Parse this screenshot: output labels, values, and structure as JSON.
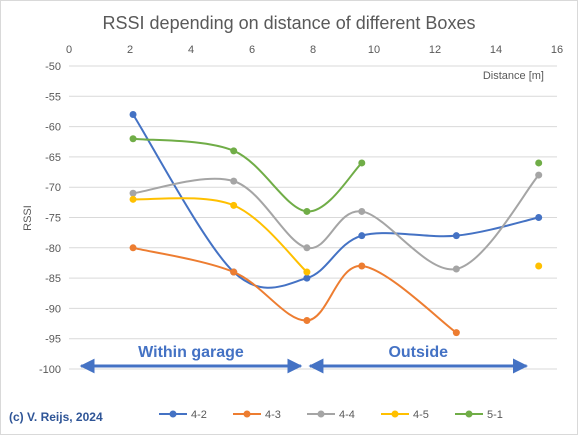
{
  "chart_data": {
    "type": "line",
    "title": "RSSI depending on distance of different Boxes",
    "xlabel": "Distance [m]",
    "ylabel": "RSSI",
    "xlim": [
      0,
      16
    ],
    "ylim": [
      -100,
      -50
    ],
    "x_ticks": [
      "0",
      "2",
      "4",
      "6",
      "8",
      "10",
      "12",
      "14",
      "16"
    ],
    "y_ticks": [
      "-50",
      "-55",
      "-60",
      "-65",
      "-70",
      "-75",
      "-80",
      "-85",
      "-90",
      "-95",
      "-100"
    ],
    "grid": "horizontal",
    "legend_position": "bottom",
    "series": [
      {
        "name": "4-2",
        "color": "#4472c4",
        "points": [
          [
            2.1,
            -58
          ],
          [
            5.4,
            -84
          ],
          [
            7.8,
            -85
          ],
          [
            9.6,
            -78
          ],
          [
            12.7,
            -78
          ],
          [
            15.4,
            -75
          ]
        ]
      },
      {
        "name": "4-3",
        "color": "#ed7d31",
        "points": [
          [
            2.1,
            -80
          ],
          [
            5.4,
            -84
          ],
          [
            7.8,
            -92
          ],
          [
            9.6,
            -83
          ],
          [
            12.7,
            -94
          ]
        ]
      },
      {
        "name": "4-4",
        "color": "#a5a5a5",
        "points": [
          [
            2.1,
            -71
          ],
          [
            5.4,
            -69
          ],
          [
            7.8,
            -80
          ],
          [
            9.6,
            -74
          ],
          [
            12.7,
            -83.5
          ],
          [
            15.4,
            -68
          ]
        ]
      },
      {
        "name": "4-5",
        "color": "#ffc000",
        "points": [
          [
            2.1,
            -72
          ],
          [
            5.4,
            -73
          ],
          [
            7.8,
            -84
          ]
        ],
        "isolated_points": [
          [
            15.4,
            -83
          ]
        ]
      },
      {
        "name": "5-1",
        "color": "#70ad47",
        "points": [
          [
            2.1,
            -62
          ],
          [
            5.4,
            -64
          ],
          [
            7.8,
            -74
          ],
          [
            9.6,
            -66
          ]
        ],
        "isolated_points": [
          [
            15.4,
            -66
          ]
        ]
      }
    ],
    "annotations": [
      {
        "text": "Within garage",
        "arrow_from_x": 0.4,
        "arrow_to_x": 7.6
      },
      {
        "text": "Outside",
        "arrow_from_x": 7.9,
        "arrow_to_x": 15.0
      }
    ]
  },
  "credit": "(c) V. Reijs, 2024"
}
